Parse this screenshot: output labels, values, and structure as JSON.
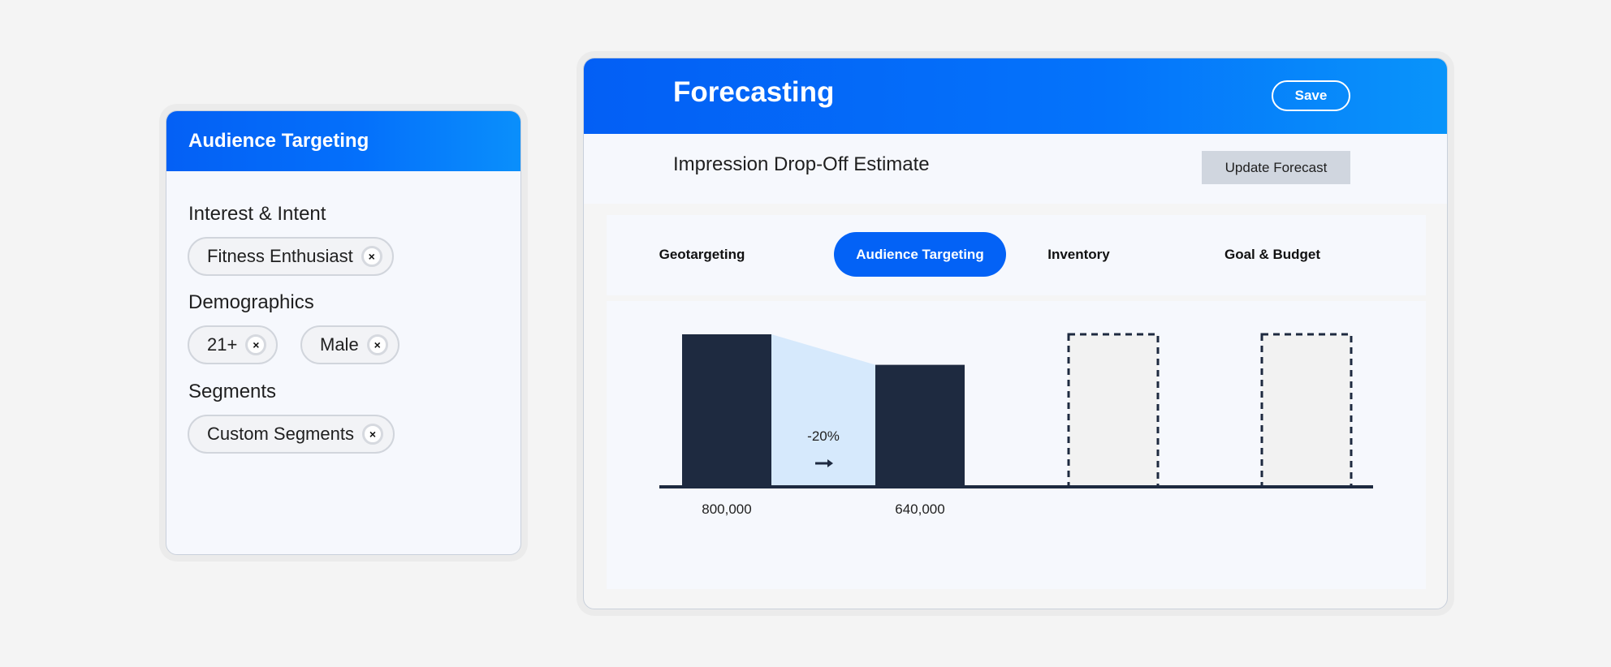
{
  "audience_card": {
    "title": "Audience Targeting",
    "sections": [
      {
        "label": "Interest & Intent",
        "chips": [
          "Fitness Enthusiast"
        ]
      },
      {
        "label": "Demographics",
        "chips": [
          "21+",
          "Male"
        ]
      },
      {
        "label": "Segments",
        "chips": [
          "Custom Segments"
        ]
      }
    ],
    "chip_remove_icon": "×"
  },
  "forecast_card": {
    "title": "Forecasting",
    "save_label": "Save",
    "subtitle": "Impression Drop-Off Estimate",
    "update_label": "Update Forecast",
    "tabs": [
      {
        "label": "Geotargeting",
        "active": false
      },
      {
        "label": "Audience Targeting",
        "active": true
      },
      {
        "label": "Inventory",
        "active": false
      },
      {
        "label": "Goal & Budget",
        "active": false
      }
    ]
  },
  "chart_data": {
    "type": "bar",
    "categories": [
      "Geotargeting",
      "Audience Targeting",
      "Inventory",
      "Goal & Budget"
    ],
    "values": [
      800000,
      640000,
      null,
      null
    ],
    "data_labels": [
      "800,000",
      "640,000",
      "",
      ""
    ],
    "pending_placeholders": [
      false,
      false,
      true,
      true
    ],
    "change_label": "-20%",
    "change_icon": "arrow-right-icon",
    "ylim": [
      0,
      800000
    ],
    "grid": false,
    "colors": {
      "bar": "#1e2a40",
      "dropoff": "#d6e9fc",
      "placeholder_fill": "#f2f2f2",
      "axis": "#1e2a40"
    }
  },
  "colors": {
    "accent": "#0362f6",
    "card_bg": "#f6f8fd",
    "page_bg": "#f4f4f4"
  }
}
